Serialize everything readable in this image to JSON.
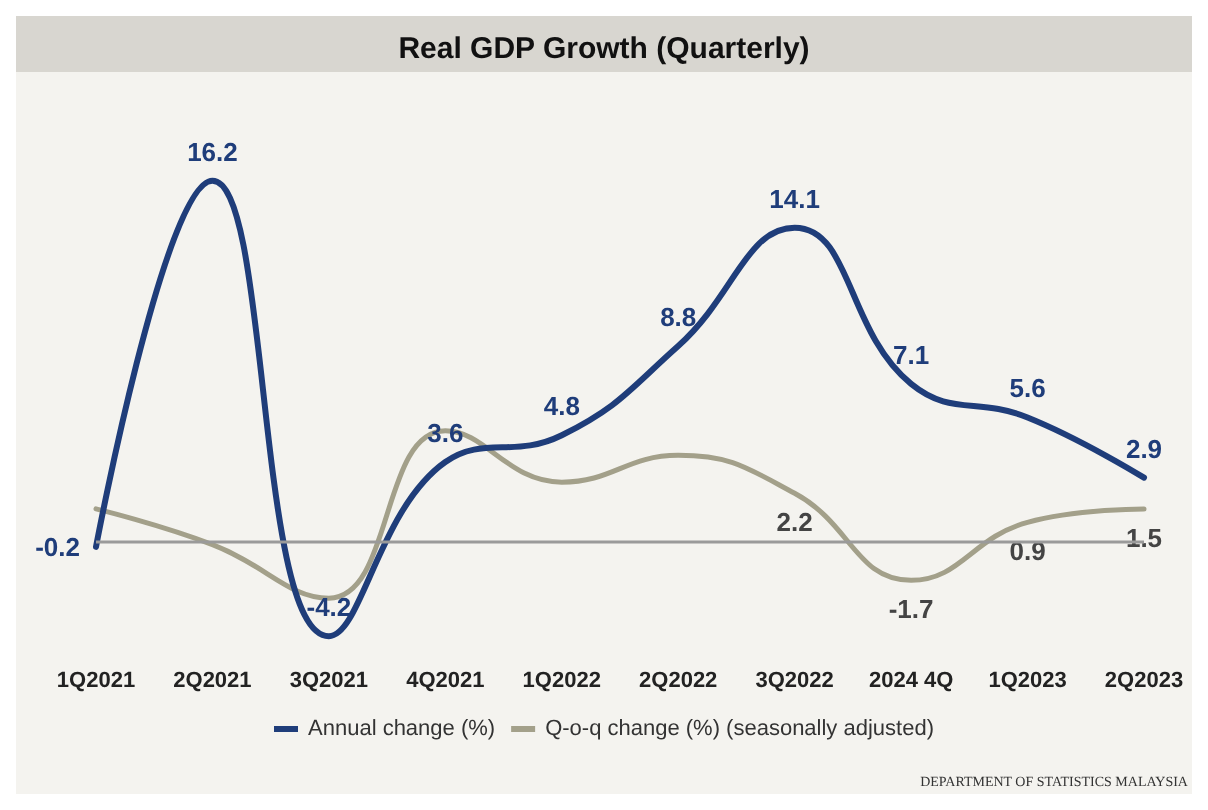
{
  "chart_data": {
    "type": "line",
    "title": "Real GDP Growth (Quarterly)",
    "categories": [
      "1Q2021",
      "2Q2021",
      "3Q2021",
      "4Q2021",
      "1Q2022",
      "2Q2022",
      "3Q2022",
      "2024 4Q",
      "1Q2023",
      "2Q2023"
    ],
    "series": [
      {
        "name": "Annual change (%)",
        "color": "#1f3d7a",
        "values": [
          -0.2,
          16.2,
          -4.2,
          3.6,
          4.8,
          8.8,
          14.1,
          7.1,
          5.6,
          2.9
        ],
        "value_labels": [
          "-0.2",
          "16.2",
          "-4.2",
          "3.6",
          "4.8",
          "8.8",
          "14.1",
          "7.1",
          "5.6",
          "2.9"
        ]
      },
      {
        "name": "Q-o-q change (%) (seasonally adjusted)",
        "color": "#a3a08a",
        "values": [
          1.5,
          -0.1,
          -2.5,
          5.0,
          2.7,
          3.9,
          2.2,
          -1.7,
          0.9,
          1.5
        ],
        "value_labels": [
          null,
          null,
          null,
          null,
          null,
          null,
          "2.2",
          "-1.7",
          "0.9",
          "1.5"
        ]
      }
    ],
    "tick_labels": "x",
    "grid": false,
    "legend": "bottom",
    "marker": "none",
    "line_style": "solid",
    "ref_lines": [
      {
        "axis": "y",
        "value": 0,
        "color": "#9a9a9a"
      }
    ],
    "annotations": [
      "DEPARTMENT OF STATISTICS MALAYSIA"
    ]
  }
}
